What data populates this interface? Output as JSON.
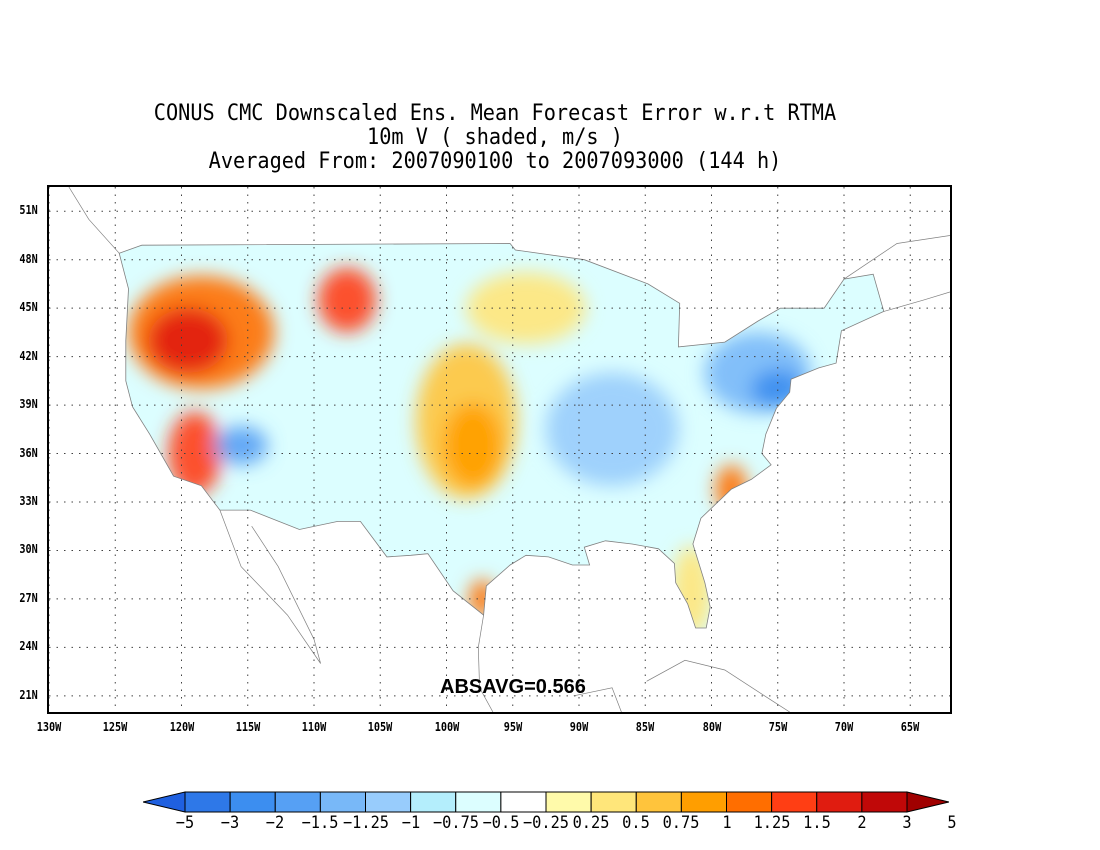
{
  "title": {
    "line1": "CONUS CMC Downscaled Ens. Mean Forecast Error w.r.t RTMA",
    "line2": "10m V ( shaded, m/s )",
    "line3": "Averaged From: 2007090100 to 2007093000 (144 h)"
  },
  "map": {
    "lat_labels": [
      "51N",
      "48N",
      "45N",
      "42N",
      "39N",
      "36N",
      "33N",
      "30N",
      "27N",
      "24N",
      "21N"
    ],
    "lat_values": [
      51,
      48,
      45,
      42,
      39,
      36,
      33,
      30,
      27,
      24,
      21
    ],
    "lon_labels": [
      "130W",
      "125W",
      "120W",
      "115W",
      "110W",
      "105W",
      "100W",
      "95W",
      "90W",
      "85W",
      "80W",
      "75W",
      "70W",
      "65W"
    ],
    "lon_values": [
      -130,
      -125,
      -120,
      -115,
      -110,
      -105,
      -100,
      -95,
      -90,
      -85,
      -80,
      -75,
      -70,
      -65
    ],
    "lon_range": [
      -130,
      -62
    ],
    "lat_range": [
      20,
      52.5
    ],
    "grid": "dotted",
    "coastline_color": "#808080"
  },
  "annotation": {
    "absavg": "ABSAVG=0.566"
  },
  "colorbar": {
    "labels": [
      "−5",
      "−3",
      "−2",
      "−1.5",
      "−1.25",
      "−1",
      "−0.75",
      "−0.5",
      "−0.25",
      "0.25",
      "0.5",
      "0.75",
      "1",
      "1.25",
      "1.5",
      "2",
      "3",
      "5"
    ],
    "colors": [
      "#1f60e0",
      "#2e78e8",
      "#3c8ef0",
      "#56a0f4",
      "#78b8f8",
      "#98ccfc",
      "#b4eefc",
      "#dcfeff",
      "#ffffff",
      "#fffaaa",
      "#ffe67a",
      "#ffc43c",
      "#ff9e00",
      "#ff6e00",
      "#ff3e14",
      "#e01c10",
      "#c00808",
      "#a00000"
    ]
  },
  "field_regions": [
    {
      "name": "northwest-warm",
      "color": "#ff6e00",
      "lon": -118.5,
      "lat": 43.5,
      "rx": 5.5,
      "ry": 3.5
    },
    {
      "name": "northwest-hot",
      "color": "#e01c10",
      "lon": -119.5,
      "lat": 43,
      "rx": 3,
      "ry": 2
    },
    {
      "name": "montana-warm",
      "color": "#ff3e14",
      "lon": -107.5,
      "lat": 45.5,
      "rx": 2.2,
      "ry": 2
    },
    {
      "name": "california-hot",
      "color": "#ff3e14",
      "lon": -119,
      "lat": 36,
      "rx": 2,
      "ry": 2.6
    },
    {
      "name": "nevada-cool",
      "color": "#56a0f4",
      "lon": -115.5,
      "lat": 36.5,
      "rx": 2,
      "ry": 1.2
    },
    {
      "name": "plains-warm",
      "color": "#ffc43c",
      "lon": -98.5,
      "lat": 38,
      "rx": 3.8,
      "ry": 4.8
    },
    {
      "name": "plains-hot",
      "color": "#ff9e00",
      "lon": -98,
      "lat": 36.5,
      "rx": 2.2,
      "ry": 2.6
    },
    {
      "name": "midwest-cool",
      "color": "#98ccfc",
      "lon": -87.5,
      "lat": 37.5,
      "rx": 5,
      "ry": 3.5
    },
    {
      "name": "northeast-cool",
      "color": "#78b8f8",
      "lon": -76.5,
      "lat": 41,
      "rx": 4,
      "ry": 2.5
    },
    {
      "name": "northeast-blue",
      "color": "#3c8ef0",
      "lon": -75,
      "lat": 40,
      "rx": 2,
      "ry": 1.2
    },
    {
      "name": "lakes-warm",
      "color": "#ffe67a",
      "lon": -94,
      "lat": 45,
      "rx": 4.5,
      "ry": 2.2
    },
    {
      "name": "texas-coast",
      "color": "#ff6e00",
      "lon": -97.3,
      "lat": 27,
      "rx": 1,
      "ry": 1.2
    },
    {
      "name": "florida-warm",
      "color": "#ffe67a",
      "lon": -81.5,
      "lat": 27.5,
      "rx": 1.5,
      "ry": 2.8
    },
    {
      "name": "carolina-coast",
      "color": "#ff6e00",
      "lon": -78.5,
      "lat": 33.8,
      "rx": 1.2,
      "ry": 1.5
    }
  ]
}
